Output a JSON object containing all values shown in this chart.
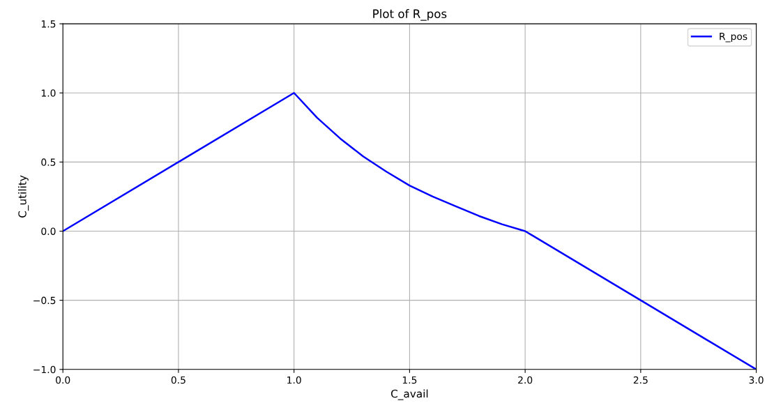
{
  "chart_data": {
    "type": "line",
    "title": "Plot of R_pos",
    "xlabel": "C_avail",
    "ylabel": "C_utility",
    "x": [
      0,
      0.5,
      1.0,
      1.1,
      1.2,
      1.3,
      1.4,
      1.5,
      1.6,
      1.7,
      1.8,
      1.9,
      2.0,
      2.5,
      3.0
    ],
    "series": [
      {
        "name": "R_pos",
        "color": "#0000ff",
        "values": [
          0,
          0.5,
          1.0,
          0.82,
          0.67,
          0.54,
          0.43,
          0.33,
          0.25,
          0.18,
          0.11,
          0.05,
          0,
          -0.5,
          -1.0
        ]
      }
    ],
    "xlim": [
      0,
      3
    ],
    "ylim": [
      -1,
      1.5
    ],
    "xticks": [
      {
        "value": 0,
        "label": "0.0"
      },
      0.5,
      {
        "value": 1,
        "label": "1.0"
      },
      1.5,
      {
        "value": 2,
        "label": "2.0"
      },
      2.5,
      {
        "value": 3,
        "label": "3.0"
      }
    ],
    "yticks": [
      {
        "value": -1,
        "label": "−1.0"
      },
      -0.5,
      {
        "value": 0,
        "label": "0.0"
      },
      0.5,
      {
        "value": 1,
        "label": "1.0"
      },
      1.5
    ],
    "grid": true,
    "legend": "top right"
  }
}
